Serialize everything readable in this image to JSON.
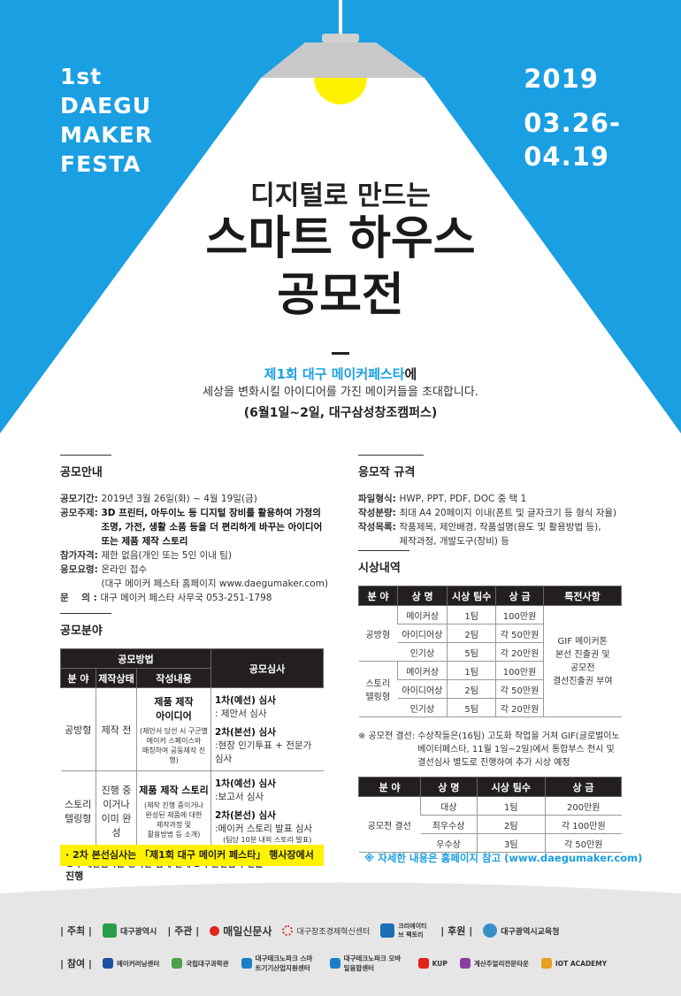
{
  "colors": {
    "blue": "#1a9fe3",
    "yellow": "#fff200",
    "lamp": "#c8c8c8",
    "bulb": "#fff200",
    "dark": "#231f20",
    "footer": "#e6e6e6"
  },
  "header": {
    "festa": [
      "1st",
      "DAEGU",
      "MAKER",
      "FESTA"
    ],
    "year": "2019",
    "dates": [
      "03.26-",
      "04.19"
    ],
    "subtitle": "디지털로 만드는",
    "title_line1": "스마트 하우스",
    "title_line2": "공모전",
    "invite_highlight": "제1회 대구 메이커페스타",
    "invite_suffix": "에",
    "invite_line2": "세상을 변화시킬 아이디어를 가진 메이커들을 초대합니다.",
    "event": "(6월1일~2일, 대구삼성창조캠퍼스)"
  },
  "guide": {
    "title": "공모안내",
    "rows": [
      {
        "k": "공모기간: ",
        "v": "2019년 3월 26일(화) ~ 4월 19일(금)"
      },
      {
        "k": "공모주제: ",
        "v": "3D 프린터, 아두이노 등 디지털 장비를 활용하여 가정의\n조명, 가전, 생활 소품 등을 더 편리하게 바꾸는 아이디어\n또는 제품 제작 스토리",
        "bold": true
      },
      {
        "k": "참가자격: ",
        "v": "제한 없음(개인 또는 5인 이내 팀)"
      },
      {
        "k": "응모요령: ",
        "v": "온라인 접수\n(대구 메이커 페스타 홈페이지 www.daegumaker.com)"
      },
      {
        "k": "문    의 : ",
        "v": "대구 메이커 페스타 사무국 053-251-1798"
      }
    ]
  },
  "category": {
    "title": "공모분야",
    "h_method": "공모방법",
    "h_review": "공모심사",
    "h_field": "분 야",
    "h_state": "제작상태",
    "h_content": "작성내용",
    "rows": [
      {
        "field": "공방형",
        "state": "제작 전",
        "content_title": "제품 제작\n아이디어",
        "content_note": "(제안서 당선 시 구군별\n메이커 스페이스와\n매칭하여 공동제작 진행)",
        "r1": "1차(예선) 심사",
        "r1d": ": 제안서 심사",
        "r2": "2차(본선) 심사",
        "r2d": ":현장 인기투표 + 전문가 심사",
        "r2n": ""
      },
      {
        "field": "스토리\n텔링형",
        "state": "진행 중\n이거나\n이미 완성",
        "content_title": "제품 제작 스토리",
        "content_note": "(제작 진행 중이거나\n완성된 제품에 대한\n제작과정 및\n활용방법 등 소개)",
        "r1": "1차(예선) 심사",
        "r1d": ":보고서 심사",
        "r2": "2차(본선) 심사",
        "r2d": ":메이커 스토리 발표 심사",
        "r2n": "(팀당 10분 내외 스토리 발표)"
      }
    ],
    "note": "· 1차 예선심사를 통과한 팀에 한해 2차 본선심사 진출",
    "highlight": "· 2차 본선심사는 「제1회 대구 메이커 페스타」 행사장에서 진행"
  },
  "spec": {
    "title": "응모작 규격",
    "rows": [
      {
        "k": "파일형식: ",
        "v": "HWP, PPT, PDF, DOC 중 택 1"
      },
      {
        "k": "작성분량: ",
        "v": "최대 A4 20페이지 이내(폰트 및 글자크기 등 형식 자율)"
      },
      {
        "k": "작성목록: ",
        "v": "작품제목, 제안배경, 작품설명(용도 및 활용방법 등),\n제작과정, 개발도구(장비) 등"
      }
    ]
  },
  "awards": {
    "title": "시상내역",
    "headers": [
      "분 야",
      "상 명",
      "시상 팀수",
      "상 금",
      "특전사항"
    ],
    "groups": [
      {
        "field": "공방형",
        "rows": [
          [
            "메이커상",
            "1팀",
            "100만원"
          ],
          [
            "아이디어상",
            "2팀",
            "각 50만원"
          ],
          [
            "인기상",
            "5팀",
            "각 20만원"
          ]
        ]
      },
      {
        "field": "스토리\n텔링형",
        "rows": [
          [
            "메이커상",
            "1팀",
            "100만원"
          ],
          [
            "아이디어상",
            "2팀",
            "각 50만원"
          ],
          [
            "인기상",
            "5팀",
            "각 20만원"
          ]
        ]
      }
    ],
    "benefit": "GIF 메이커톤\n본선 진출권 및\n공모전\n결선진출권 부여",
    "final_note_k": "※ 공모전 결선: ",
    "final_note_v": "수상작들은(16팀) 고도화 작업을 거쳐 GIF(글로벌이노\n베이터페스타, 11월 1일~2일)에서 통합부스 전시 및\n결선심사 별도로 진행하여 추가 시상 예정",
    "final_headers": [
      "분 야",
      "상 명",
      "시상 팀수",
      "상 금"
    ],
    "final_field": "공모전 결선",
    "final_rows": [
      [
        "대상",
        "1팀",
        "200만원"
      ],
      [
        "최우수상",
        "2팀",
        "각 100만원"
      ],
      [
        "우수상",
        "3팀",
        "각 50만원"
      ]
    ],
    "more": "※ 자세한 내용은 홈페이지 참고 (www.daegumaker.com)"
  },
  "footer": {
    "host_label": "| 주최 |",
    "host": [
      "대구광역시"
    ],
    "organizer_label": "| 주관 |",
    "organizers": [
      "매일신문사",
      "대구창조경제혁신센터",
      "크리에이티브 팩토리"
    ],
    "sponsor_label": "| 후원 |",
    "sponsors": [
      "대구광역시교육청"
    ],
    "partner_label": "| 참여 |",
    "partners": [
      "메이커러닝센터",
      "국립대구과학관",
      "대구테크노파크 스마트기기산업지원센터",
      "대구테크노파크 모바일융합센터",
      "KUP",
      "계산주얼리전문타운",
      "IOT ACADEMY"
    ]
  }
}
